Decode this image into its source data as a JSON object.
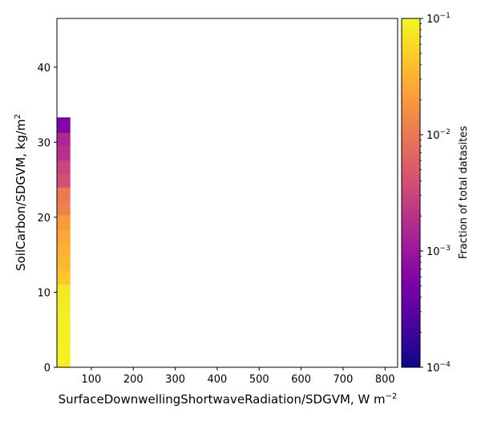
{
  "chart_data": {
    "type": "heatmap",
    "title": "",
    "xlabel": "SurfaceDownwellingShortwaveRadiation/SDGVM,  W m",
    "xlabel_sup": "−2",
    "ylabel": "SoilCarbon/SDGVM,  kg/m",
    "ylabel_sup": "2",
    "xlim": [
      18,
      830
    ],
    "ylim": [
      0,
      46.5
    ],
    "xticks": [
      100,
      200,
      300,
      400,
      500,
      600,
      700,
      800
    ],
    "yticks": [
      0,
      10,
      20,
      30,
      40
    ],
    "colorbar": {
      "label": "Fraction of total datasites",
      "scale": "log",
      "range": [
        0.0001,
        0.1
      ],
      "colormap": "plasma",
      "ticks": [
        {
          "value": 0.1,
          "base": "10",
          "exp": "−1"
        },
        {
          "value": 0.01,
          "base": "10",
          "exp": "−2"
        },
        {
          "value": 0.001,
          "base": "10",
          "exp": "−3"
        },
        {
          "value": 0.0001,
          "base": "10",
          "exp": "−4"
        }
      ]
    },
    "cells": [
      {
        "x0": 18,
        "x1": 50,
        "y0": 0,
        "y1": 1.8,
        "value": 0.09
      },
      {
        "x0": 18,
        "x1": 50,
        "y0": 1.8,
        "y1": 3.7,
        "value": 0.09
      },
      {
        "x0": 18,
        "x1": 50,
        "y0": 3.7,
        "y1": 5.5,
        "value": 0.085
      },
      {
        "x0": 18,
        "x1": 50,
        "y0": 5.5,
        "y1": 7.4,
        "value": 0.085
      },
      {
        "x0": 18,
        "x1": 50,
        "y0": 7.4,
        "y1": 9.2,
        "value": 0.08
      },
      {
        "x0": 18,
        "x1": 50,
        "y0": 9.2,
        "y1": 11.1,
        "value": 0.075
      },
      {
        "x0": 18,
        "x1": 50,
        "y0": 11.1,
        "y1": 12.9,
        "value": 0.045
      },
      {
        "x0": 18,
        "x1": 50,
        "y0": 12.9,
        "y1": 14.7,
        "value": 0.035
      },
      {
        "x0": 18,
        "x1": 50,
        "y0": 14.7,
        "y1": 16.6,
        "value": 0.03
      },
      {
        "x0": 18,
        "x1": 50,
        "y0": 16.6,
        "y1": 18.4,
        "value": 0.025
      },
      {
        "x0": 18,
        "x1": 50,
        "y0": 18.4,
        "y1": 20.3,
        "value": 0.02
      },
      {
        "x0": 18,
        "x1": 50,
        "y0": 20.3,
        "y1": 22.1,
        "value": 0.012
      },
      {
        "x0": 18,
        "x1": 50,
        "y0": 22.1,
        "y1": 24.0,
        "value": 0.01
      },
      {
        "x0": 18,
        "x1": 50,
        "y0": 24.0,
        "y1": 25.8,
        "value": 0.004
      },
      {
        "x0": 18,
        "x1": 50,
        "y0": 25.8,
        "y1": 27.6,
        "value": 0.003
      },
      {
        "x0": 18,
        "x1": 50,
        "y0": 27.6,
        "y1": 29.5,
        "value": 0.002
      },
      {
        "x0": 18,
        "x1": 50,
        "y0": 29.5,
        "y1": 31.3,
        "value": 0.0015
      },
      {
        "x0": 18,
        "x1": 50,
        "y0": 31.3,
        "y1": 33.2,
        "value": 0.0006
      },
      {
        "x0": 18,
        "x1": 50,
        "y0": 33.2,
        "y1": 33.3,
        "value": 0.0002
      }
    ]
  }
}
